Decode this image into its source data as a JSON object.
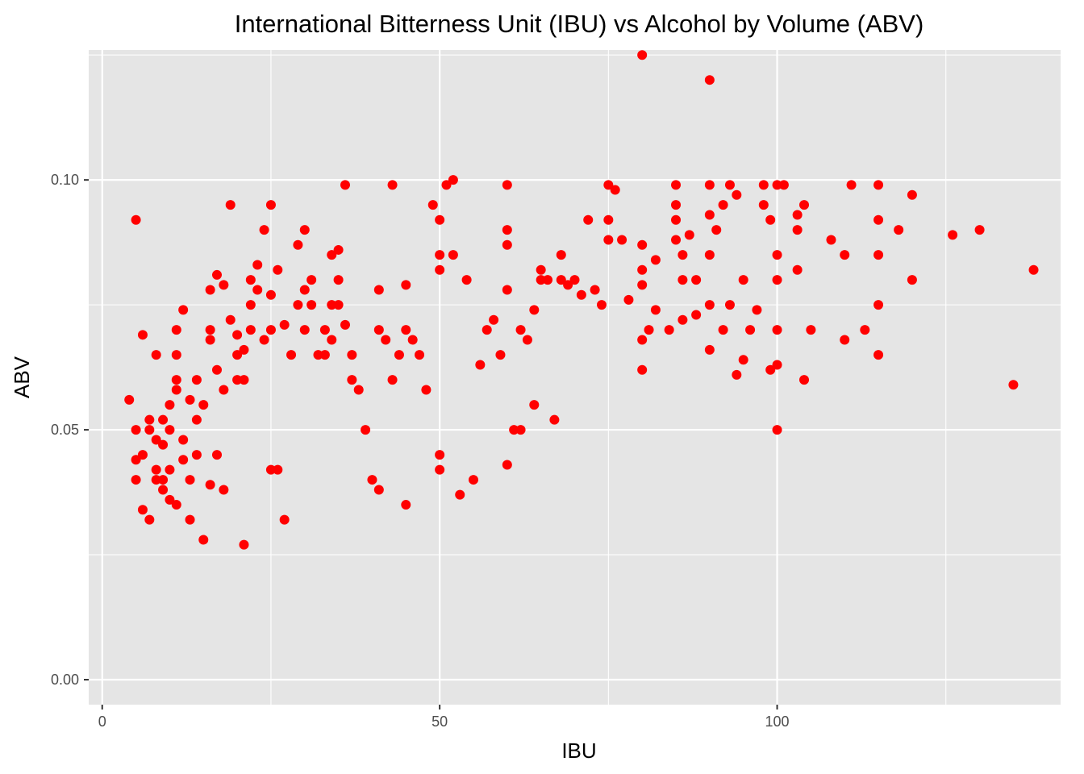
{
  "chart_data": {
    "type": "scatter",
    "title": "International Bitterness Unit (IBU) vs Alcohol by Volume (ABV)",
    "xlabel": "IBU",
    "ylabel": "ABV",
    "xlim": [
      -2,
      142
    ],
    "ylim": [
      -0.005,
      0.126
    ],
    "x_ticks": [
      0,
      50,
      100
    ],
    "x_tick_labels": [
      "0",
      "50",
      "100"
    ],
    "y_ticks": [
      0.0,
      0.05,
      0.1
    ],
    "y_tick_labels": [
      "0.00",
      "0.05",
      "0.10"
    ],
    "grid": true,
    "panel_background": "#e5e5e5",
    "point_color": "#ff0000",
    "series": [
      {
        "points": [
          [
            4,
            0.056
          ],
          [
            5,
            0.092
          ],
          [
            5,
            0.05
          ],
          [
            5,
            0.044
          ],
          [
            5,
            0.04
          ],
          [
            6,
            0.069
          ],
          [
            6,
            0.045
          ],
          [
            6,
            0.034
          ],
          [
            7,
            0.032
          ],
          [
            7,
            0.05
          ],
          [
            7,
            0.052
          ],
          [
            8,
            0.065
          ],
          [
            8,
            0.048
          ],
          [
            8,
            0.042
          ],
          [
            8,
            0.04
          ],
          [
            9,
            0.047
          ],
          [
            9,
            0.052
          ],
          [
            9,
            0.04
          ],
          [
            9,
            0.038
          ],
          [
            10,
            0.042
          ],
          [
            10,
            0.036
          ],
          [
            10,
            0.05
          ],
          [
            10,
            0.055
          ],
          [
            11,
            0.07
          ],
          [
            11,
            0.065
          ],
          [
            11,
            0.058
          ],
          [
            11,
            0.06
          ],
          [
            11,
            0.035
          ],
          [
            12,
            0.074
          ],
          [
            12,
            0.048
          ],
          [
            12,
            0.044
          ],
          [
            13,
            0.056
          ],
          [
            13,
            0.04
          ],
          [
            13,
            0.032
          ],
          [
            14,
            0.06
          ],
          [
            14,
            0.052
          ],
          [
            14,
            0.045
          ],
          [
            15,
            0.028
          ],
          [
            15,
            0.055
          ],
          [
            16,
            0.068
          ],
          [
            16,
            0.078
          ],
          [
            16,
            0.07
          ],
          [
            16,
            0.039
          ],
          [
            17,
            0.081
          ],
          [
            17,
            0.062
          ],
          [
            17,
            0.045
          ],
          [
            18,
            0.079
          ],
          [
            18,
            0.058
          ],
          [
            18,
            0.038
          ],
          [
            19,
            0.095
          ],
          [
            19,
            0.072
          ],
          [
            20,
            0.069
          ],
          [
            20,
            0.065
          ],
          [
            20,
            0.06
          ],
          [
            21,
            0.027
          ],
          [
            21,
            0.066
          ],
          [
            21,
            0.06
          ],
          [
            22,
            0.08
          ],
          [
            22,
            0.075
          ],
          [
            22,
            0.07
          ],
          [
            23,
            0.083
          ],
          [
            23,
            0.078
          ],
          [
            24,
            0.09
          ],
          [
            24,
            0.068
          ],
          [
            25,
            0.095
          ],
          [
            25,
            0.077
          ],
          [
            25,
            0.07
          ],
          [
            25,
            0.042
          ],
          [
            26,
            0.082
          ],
          [
            26,
            0.042
          ],
          [
            27,
            0.071
          ],
          [
            27,
            0.032
          ],
          [
            28,
            0.065
          ],
          [
            29,
            0.087
          ],
          [
            29,
            0.075
          ],
          [
            30,
            0.09
          ],
          [
            30,
            0.078
          ],
          [
            30,
            0.07
          ],
          [
            31,
            0.075
          ],
          [
            31,
            0.08
          ],
          [
            32,
            0.065
          ],
          [
            33,
            0.065
          ],
          [
            33,
            0.07
          ],
          [
            34,
            0.075
          ],
          [
            34,
            0.085
          ],
          [
            34,
            0.068
          ],
          [
            35,
            0.086
          ],
          [
            35,
            0.08
          ],
          [
            35,
            0.075
          ],
          [
            36,
            0.099
          ],
          [
            36,
            0.071
          ],
          [
            37,
            0.065
          ],
          [
            37,
            0.06
          ],
          [
            38,
            0.058
          ],
          [
            39,
            0.05
          ],
          [
            40,
            0.04
          ],
          [
            41,
            0.038
          ],
          [
            41,
            0.078
          ],
          [
            41,
            0.07
          ],
          [
            42,
            0.068
          ],
          [
            43,
            0.099
          ],
          [
            43,
            0.06
          ],
          [
            44,
            0.065
          ],
          [
            45,
            0.079
          ],
          [
            45,
            0.035
          ],
          [
            45,
            0.07
          ],
          [
            46,
            0.068
          ],
          [
            47,
            0.065
          ],
          [
            48,
            0.058
          ],
          [
            49,
            0.095
          ],
          [
            50,
            0.092
          ],
          [
            50,
            0.085
          ],
          [
            50,
            0.082
          ],
          [
            50,
            0.045
          ],
          [
            50,
            0.042
          ],
          [
            51,
            0.099
          ],
          [
            52,
            0.1
          ],
          [
            52,
            0.085
          ],
          [
            53,
            0.037
          ],
          [
            54,
            0.08
          ],
          [
            55,
            0.04
          ],
          [
            56,
            0.063
          ],
          [
            57,
            0.07
          ],
          [
            58,
            0.072
          ],
          [
            59,
            0.065
          ],
          [
            60,
            0.099
          ],
          [
            60,
            0.09
          ],
          [
            60,
            0.087
          ],
          [
            60,
            0.078
          ],
          [
            60,
            0.043
          ],
          [
            61,
            0.05
          ],
          [
            62,
            0.05
          ],
          [
            62,
            0.07
          ],
          [
            63,
            0.068
          ],
          [
            64,
            0.055
          ],
          [
            64,
            0.074
          ],
          [
            65,
            0.082
          ],
          [
            65,
            0.08
          ],
          [
            66,
            0.08
          ],
          [
            67,
            0.052
          ],
          [
            68,
            0.085
          ],
          [
            68,
            0.08
          ],
          [
            69,
            0.079
          ],
          [
            70,
            0.08
          ],
          [
            71,
            0.077
          ],
          [
            72,
            0.092
          ],
          [
            73,
            0.078
          ],
          [
            74,
            0.075
          ],
          [
            75,
            0.099
          ],
          [
            75,
            0.092
          ],
          [
            75,
            0.088
          ],
          [
            76,
            0.098
          ],
          [
            77,
            0.088
          ],
          [
            78,
            0.076
          ],
          [
            80,
            0.087
          ],
          [
            80,
            0.082
          ],
          [
            80,
            0.079
          ],
          [
            80,
            0.068
          ],
          [
            80,
            0.062
          ],
          [
            80,
            0.125
          ],
          [
            81,
            0.07
          ],
          [
            82,
            0.084
          ],
          [
            82,
            0.074
          ],
          [
            84,
            0.07
          ],
          [
            85,
            0.099
          ],
          [
            85,
            0.095
          ],
          [
            85,
            0.092
          ],
          [
            85,
            0.088
          ],
          [
            86,
            0.085
          ],
          [
            86,
            0.08
          ],
          [
            86,
            0.072
          ],
          [
            87,
            0.089
          ],
          [
            88,
            0.08
          ],
          [
            88,
            0.073
          ],
          [
            90,
            0.12
          ],
          [
            90,
            0.099
          ],
          [
            90,
            0.093
          ],
          [
            90,
            0.085
          ],
          [
            90,
            0.075
          ],
          [
            90,
            0.066
          ],
          [
            91,
            0.09
          ],
          [
            92,
            0.095
          ],
          [
            92,
            0.07
          ],
          [
            93,
            0.099
          ],
          [
            93,
            0.075
          ],
          [
            94,
            0.097
          ],
          [
            94,
            0.061
          ],
          [
            95,
            0.08
          ],
          [
            95,
            0.064
          ],
          [
            96,
            0.07
          ],
          [
            97,
            0.074
          ],
          [
            98,
            0.099
          ],
          [
            98,
            0.095
          ],
          [
            99,
            0.092
          ],
          [
            99,
            0.062
          ],
          [
            100,
            0.099
          ],
          [
            100,
            0.085
          ],
          [
            100,
            0.08
          ],
          [
            100,
            0.07
          ],
          [
            100,
            0.063
          ],
          [
            100,
            0.05
          ],
          [
            101,
            0.099
          ],
          [
            103,
            0.093
          ],
          [
            103,
            0.09
          ],
          [
            103,
            0.082
          ],
          [
            104,
            0.095
          ],
          [
            104,
            0.06
          ],
          [
            105,
            0.07
          ],
          [
            108,
            0.088
          ],
          [
            110,
            0.085
          ],
          [
            110,
            0.068
          ],
          [
            111,
            0.099
          ],
          [
            113,
            0.07
          ],
          [
            115,
            0.099
          ],
          [
            115,
            0.092
          ],
          [
            115,
            0.085
          ],
          [
            115,
            0.075
          ],
          [
            115,
            0.065
          ],
          [
            118,
            0.09
          ],
          [
            120,
            0.097
          ],
          [
            120,
            0.08
          ],
          [
            126,
            0.089
          ],
          [
            130,
            0.09
          ],
          [
            135,
            0.059
          ],
          [
            138,
            0.082
          ]
        ]
      }
    ]
  }
}
